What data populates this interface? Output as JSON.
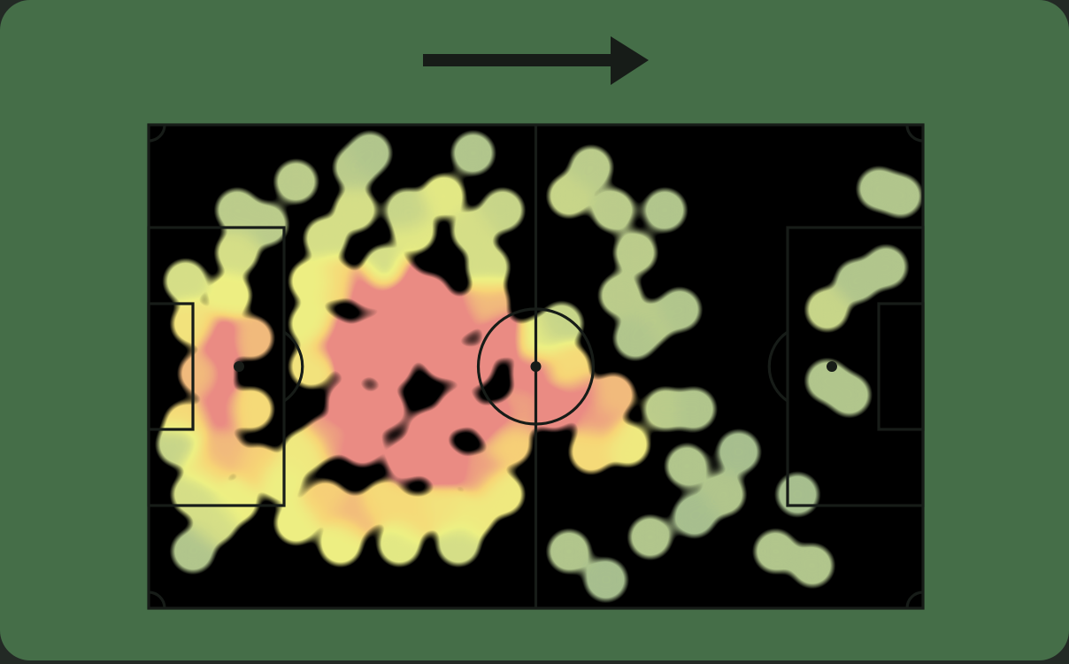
{
  "colors": {
    "background": "#456e48",
    "lines": "#171c18",
    "heat_low": "#d7de3a",
    "heat_mid": "#eda82e",
    "heat_high": "#d1423a"
  },
  "direction": {
    "icon": "arrow-right-icon",
    "meaning": "attacking-direction"
  },
  "chart_data": {
    "type": "heatmap",
    "pitch": {
      "length": 105,
      "width": 68
    },
    "x_range": [
      0,
      105
    ],
    "y_range": [
      0,
      68
    ],
    "grid": false,
    "points": [
      [
        10,
        30,
        0.95
      ],
      [
        9,
        35,
        0.95
      ],
      [
        10,
        40,
        0.9
      ],
      [
        7,
        35,
        0.8
      ],
      [
        5,
        42,
        0.7
      ],
      [
        6,
        28,
        0.65
      ],
      [
        8,
        48,
        0.65
      ],
      [
        10,
        46,
        0.8
      ],
      [
        11,
        24,
        0.55
      ],
      [
        5,
        22,
        0.45
      ],
      [
        14,
        30,
        0.8
      ],
      [
        14,
        40,
        0.7
      ],
      [
        15,
        48,
        0.75
      ],
      [
        12,
        53,
        0.55
      ],
      [
        9,
        56,
        0.45
      ],
      [
        12,
        18,
        0.45
      ],
      [
        12,
        12,
        0.35
      ],
      [
        6,
        52,
        0.45
      ],
      [
        25,
        30,
        0.95
      ],
      [
        28,
        33,
        1.0
      ],
      [
        30,
        30,
        1.0
      ],
      [
        33,
        34,
        1.0
      ],
      [
        36,
        30,
        1.0
      ],
      [
        40,
        33,
        1.0
      ],
      [
        44,
        34,
        1.0
      ],
      [
        48,
        30,
        0.95
      ],
      [
        42,
        40,
        1.0
      ],
      [
        47,
        42,
        0.95
      ],
      [
        38,
        43,
        1.0
      ],
      [
        32,
        40,
        1.0
      ],
      [
        27,
        39,
        0.95
      ],
      [
        24,
        44,
        0.85
      ],
      [
        29,
        45,
        0.9
      ],
      [
        35,
        47,
        1.0
      ],
      [
        40,
        48,
        0.95
      ],
      [
        45,
        49,
        0.85
      ],
      [
        30,
        23,
        0.95
      ],
      [
        34,
        22,
        1.0
      ],
      [
        38,
        24,
        0.95
      ],
      [
        42,
        27,
        0.9
      ],
      [
        46,
        25,
        0.8
      ],
      [
        34,
        28,
        1.0
      ],
      [
        39,
        28,
        1.0
      ],
      [
        25,
        22,
        0.7
      ],
      [
        22,
        34,
        0.65
      ],
      [
        22,
        28,
        0.55
      ],
      [
        24,
        53,
        0.75
      ],
      [
        28,
        55,
        0.8
      ],
      [
        32,
        53,
        0.7
      ],
      [
        36,
        55,
        0.7
      ],
      [
        40,
        54,
        0.65
      ],
      [
        44,
        55,
        0.6
      ],
      [
        48,
        52,
        0.6
      ],
      [
        20,
        56,
        0.55
      ],
      [
        26,
        59,
        0.55
      ],
      [
        34,
        59,
        0.5
      ],
      [
        42,
        59,
        0.45
      ],
      [
        18,
        50,
        0.55
      ],
      [
        21,
        46,
        0.6
      ],
      [
        52,
        35,
        0.9
      ],
      [
        55,
        40,
        0.95
      ],
      [
        58,
        38,
        0.9
      ],
      [
        61,
        42,
        0.85
      ],
      [
        63,
        38,
        0.8
      ],
      [
        57,
        34,
        0.7
      ],
      [
        60,
        46,
        0.7
      ],
      [
        65,
        45,
        0.6
      ],
      [
        53,
        30,
        0.5
      ],
      [
        56,
        28,
        0.4
      ],
      [
        49,
        45,
        0.75
      ],
      [
        51,
        40,
        0.85
      ],
      [
        22,
        22,
        0.55
      ],
      [
        24,
        16,
        0.45
      ],
      [
        28,
        12,
        0.45
      ],
      [
        32,
        20,
        0.45
      ],
      [
        36,
        15,
        0.5
      ],
      [
        40,
        10,
        0.5
      ],
      [
        44,
        15,
        0.45
      ],
      [
        35,
        12,
        0.4
      ],
      [
        28,
        6,
        0.35
      ],
      [
        20,
        8,
        0.35
      ],
      [
        16,
        14,
        0.35
      ],
      [
        30,
        4,
        0.3
      ],
      [
        44,
        4,
        0.3
      ],
      [
        48,
        12,
        0.4
      ],
      [
        46,
        20,
        0.45
      ],
      [
        57,
        10,
        0.4
      ],
      [
        60,
        6,
        0.35
      ],
      [
        63,
        12,
        0.35
      ],
      [
        66,
        18,
        0.35
      ],
      [
        68,
        28,
        0.35
      ],
      [
        72,
        26,
        0.3
      ],
      [
        66,
        30,
        0.3
      ],
      [
        70,
        40,
        0.35
      ],
      [
        74,
        40,
        0.3
      ],
      [
        73,
        48,
        0.3
      ],
      [
        78,
        52,
        0.3
      ],
      [
        85,
        60,
        0.3
      ],
      [
        90,
        62,
        0.3
      ],
      [
        92,
        26,
        0.4
      ],
      [
        92,
        36,
        0.3
      ],
      [
        95,
        38,
        0.3
      ],
      [
        96,
        22,
        0.3
      ],
      [
        100,
        20,
        0.3
      ],
      [
        102,
        10,
        0.3
      ],
      [
        99,
        9,
        0.3
      ],
      [
        88,
        52,
        0.25
      ],
      [
        80,
        46,
        0.25
      ],
      [
        57,
        60,
        0.3
      ],
      [
        68,
        58,
        0.3
      ],
      [
        62,
        64,
        0.25
      ],
      [
        74,
        55,
        0.25
      ],
      [
        6,
        60,
        0.3
      ],
      [
        4,
        45,
        0.4
      ],
      [
        64,
        24,
        0.35
      ],
      [
        70,
        12,
        0.3
      ]
    ]
  }
}
